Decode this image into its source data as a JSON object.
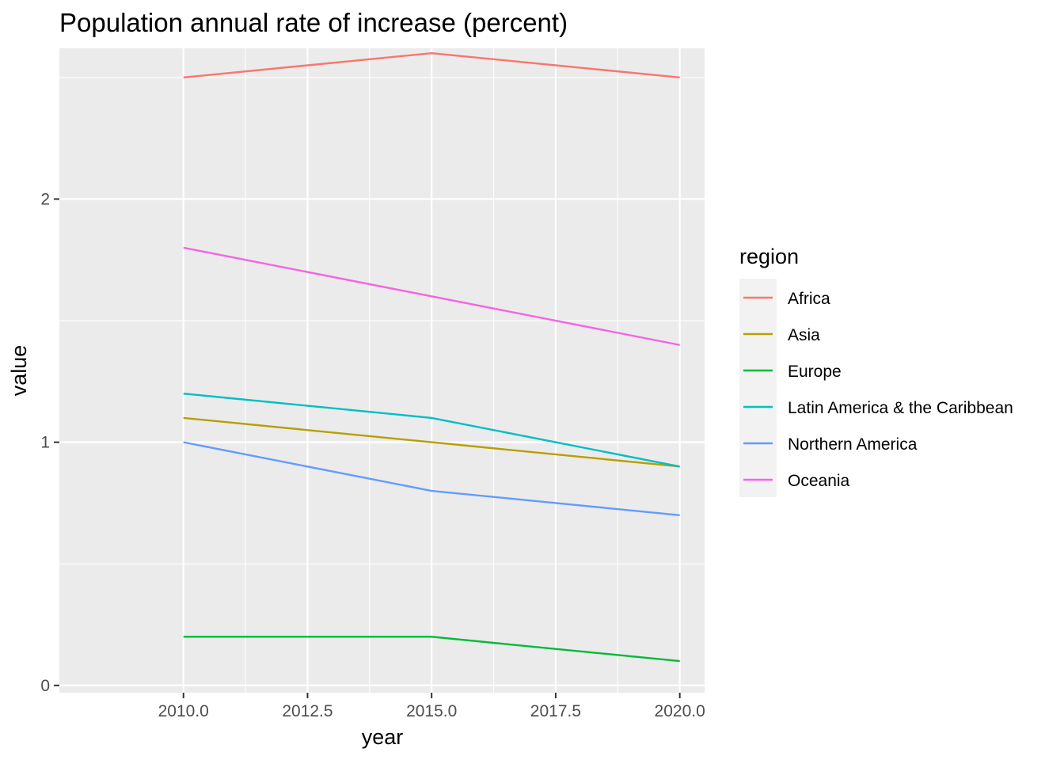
{
  "chart_data": {
    "type": "line",
    "title": "Population annual rate of increase (percent)",
    "xlabel": "year",
    "ylabel": "value",
    "x": [
      2010,
      2015,
      2020
    ],
    "xlim": [
      2007.5,
      2020.5
    ],
    "ylim": [
      -0.03,
      2.62
    ],
    "x_ticks": [
      "2010.0",
      "2012.5",
      "2015.0",
      "2017.5",
      "2020.0"
    ],
    "x_tick_values": [
      2010,
      2012.5,
      2015,
      2017.5,
      2020
    ],
    "y_ticks": [
      "0",
      "1",
      "2"
    ],
    "y_tick_values": [
      0,
      1,
      2
    ],
    "grid": true,
    "legend_position": "right",
    "legend_title": "region",
    "series": [
      {
        "name": "Africa",
        "color": "#F8766D",
        "values": [
          2.5,
          2.6,
          2.5
        ]
      },
      {
        "name": "Asia",
        "color": "#B79F00",
        "values": [
          1.1,
          1.0,
          0.9
        ]
      },
      {
        "name": "Europe",
        "color": "#00BA38",
        "values": [
          0.2,
          0.2,
          0.1
        ]
      },
      {
        "name": "Latin America & the Caribbean",
        "color": "#00BFC4",
        "values": [
          1.2,
          1.1,
          0.9
        ]
      },
      {
        "name": "Northern America",
        "color": "#619CFF",
        "values": [
          1.0,
          0.8,
          0.7
        ]
      },
      {
        "name": "Oceania",
        "color": "#F564E3",
        "values": [
          1.8,
          1.6,
          1.4
        ]
      }
    ]
  }
}
